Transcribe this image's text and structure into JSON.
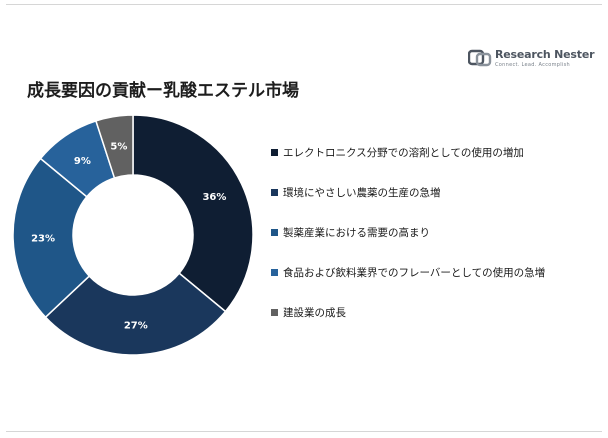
{
  "title": "成長要因の貢献ー乳酸エステル市場",
  "logo": {
    "name": "Research Nester",
    "tagline": "Connect. Lead. Accomplish",
    "icon": "research-nester-logo-mark"
  },
  "colors": {
    "slice_1": "#0f1e33",
    "slice_2": "#1a375c",
    "slice_3": "#1f5688",
    "slice_4": "#27629b",
    "slice_5": "#616161"
  },
  "chart_data": {
    "type": "pie",
    "subtype": "donut",
    "categories": [
      "エレクトロニクス分野での溶剤としての使用の増加",
      "環境にやさしい農薬の生産の急増",
      "製薬産業における需要の高まり",
      "食品および飲料業界でのフレーバーとしての使用の急増",
      "建設業の成長"
    ],
    "values": [
      36,
      27,
      23,
      9,
      5
    ],
    "data_labels": [
      "36%",
      "27%",
      "23%",
      "9%",
      "5%"
    ],
    "legend_position": "right"
  }
}
